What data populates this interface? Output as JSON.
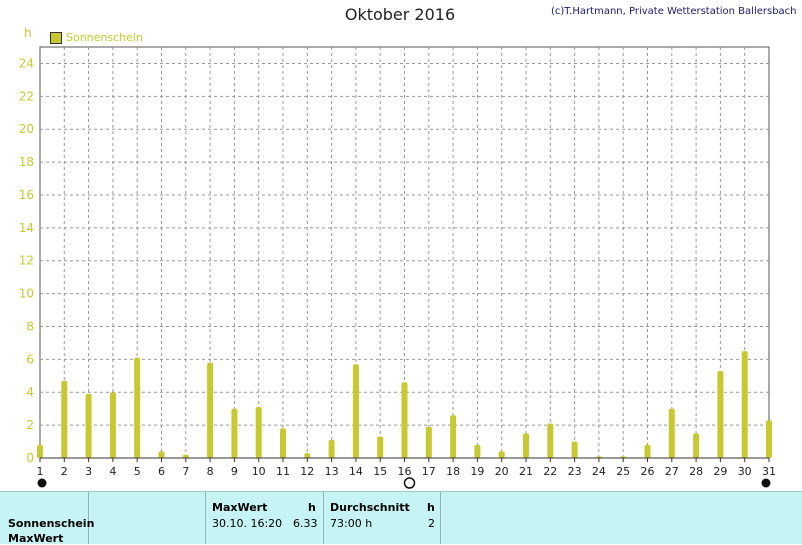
{
  "title": "Oktober 2016",
  "copyright": "(c)T.Hartmann, Private Wetterstation Ballersbach",
  "chart_data": {
    "type": "bar",
    "ylabel": "h",
    "ylim": [
      0,
      25
    ],
    "yticks": [
      "0",
      "2",
      "4",
      "6",
      "8",
      "10",
      "12",
      "14",
      "16",
      "18",
      "20",
      "22",
      "24"
    ],
    "grid": true,
    "legend_position": "top-left",
    "series": [
      {
        "name": "Sonnenschein",
        "color": "#c8c830",
        "x": [
          1,
          2,
          3,
          4,
          5,
          6,
          7,
          8,
          9,
          10,
          11,
          12,
          13,
          14,
          15,
          16,
          17,
          18,
          19,
          20,
          21,
          22,
          23,
          24,
          25,
          26,
          27,
          28,
          29,
          30,
          31
        ],
        "values": [
          0.8,
          4.7,
          3.9,
          4.0,
          6.1,
          0.4,
          0.2,
          5.8,
          3.0,
          3.1,
          1.8,
          0.3,
          1.1,
          5.7,
          1.3,
          4.6,
          1.9,
          2.6,
          0.8,
          0.4,
          1.5,
          2.1,
          1.0,
          0.1,
          0.1,
          0.8,
          3.0,
          1.5,
          5.3,
          6.5,
          2.3
        ]
      }
    ],
    "categories": [
      "1",
      "2",
      "3",
      "4",
      "5",
      "6",
      "7",
      "8",
      "9",
      "10",
      "11",
      "12",
      "13",
      "14",
      "15",
      "16",
      "17",
      "18",
      "19",
      "20",
      "21",
      "22",
      "23",
      "24",
      "25",
      "26",
      "27",
      "28",
      "29",
      "30",
      "31"
    ]
  },
  "footer": {
    "row_label_1": "Sonnenschein",
    "row_label_2": "MaxWert",
    "max_header": "MaxWert",
    "max_unit": "h",
    "max_datetime": "30.10.  16:20",
    "max_value": "6.33",
    "avg_header": "Durchschnitt",
    "avg_unit": "h",
    "avg_value": "73:00 h",
    "avg_count": "2"
  }
}
